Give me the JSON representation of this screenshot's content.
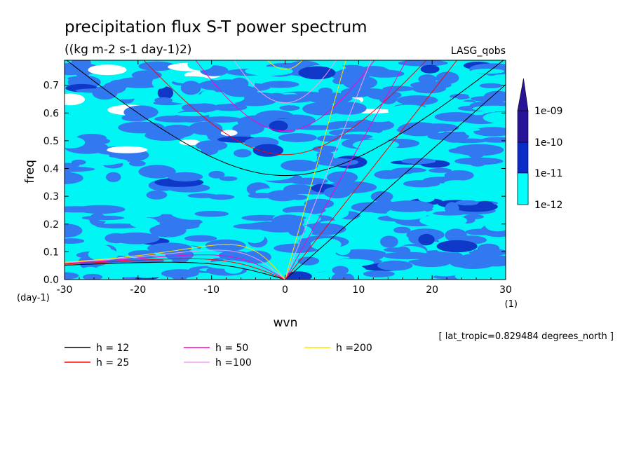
{
  "chart_data": {
    "type": "heatmap",
    "title": "precipitation flux S-T power spectrum",
    "subtitle": "((kg m-2 s-1 day-1)2)",
    "model_label": "LASG_qobs",
    "xlabel": "wvn",
    "ylabel": "freq",
    "x_unit": "(1)",
    "y_unit": "(day-1)",
    "xlim": [
      -30,
      30
    ],
    "ylim": [
      0,
      0.79
    ],
    "x_ticks": [
      -30,
      -20,
      -10,
      0,
      10,
      20,
      30
    ],
    "x_tick_labels": [
      "-30",
      "-20",
      "-10",
      "0",
      "10",
      "20",
      "30"
    ],
    "y_ticks": [
      0.0,
      0.1,
      0.2,
      0.3,
      0.4,
      0.5,
      0.6,
      0.7
    ],
    "y_tick_labels": [
      "0.0",
      "0.1",
      "0.2",
      "0.3",
      "0.4",
      "0.5",
      "0.6",
      "0.7"
    ],
    "colorbar": {
      "levels": [
        "1e-12",
        "1e-11",
        "1e-10",
        "1e-09"
      ],
      "colors": [
        "#00ffff",
        "#3c78ff",
        "#0a2cc8",
        "#281496",
        "#5a32b4"
      ]
    },
    "field_colors": {
      "background": "#00f5f5",
      "low": "#ffffff",
      "mid": "#3278f0",
      "high": "#0f37c8"
    },
    "dispersion_curves": [
      {
        "name": "h = 12",
        "label": "h = 12",
        "h": 12,
        "color": "#000000"
      },
      {
        "name": "h = 25",
        "label": "h = 25",
        "h": 25,
        "color": "#ff0000"
      },
      {
        "name": "h = 50",
        "label": "h = 50",
        "h": 50,
        "color": "#ff00c8"
      },
      {
        "name": "h = 100",
        "label": "h =100",
        "h": 100,
        "color": "#f0a0f0"
      },
      {
        "name": "h = 200",
        "label": "h =200",
        "h": 200,
        "color": "#ffe600"
      }
    ],
    "annotation": "[ lat_tropic=0.829484 degrees_north ]"
  }
}
